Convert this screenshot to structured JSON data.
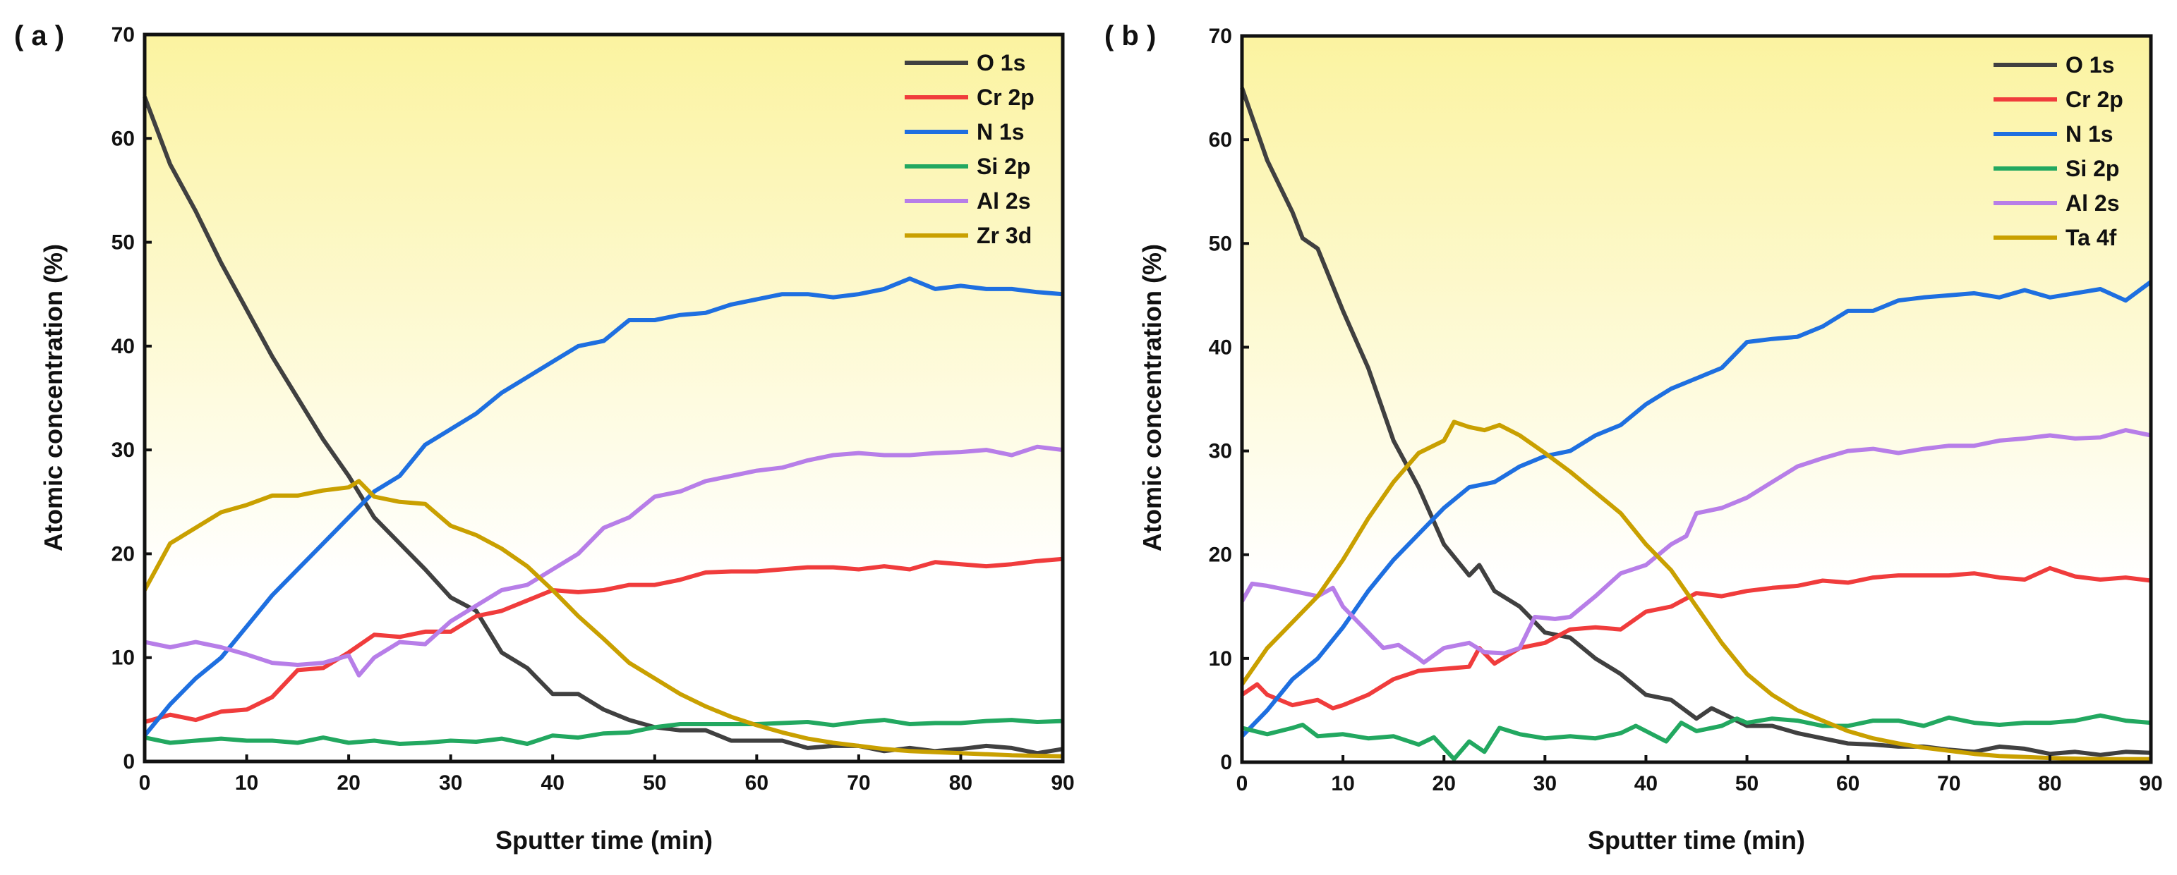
{
  "chart_data": [
    {
      "type": "line",
      "panel_label": "( a )",
      "xlabel": "Sputter time (min)",
      "ylabel": "Atomic concentration (%)",
      "xlim": [
        0,
        90
      ],
      "ylim": [
        0,
        70
      ],
      "xticks": [
        0,
        10,
        20,
        30,
        40,
        50,
        60,
        70,
        80,
        90
      ],
      "yticks": [
        0,
        10,
        20,
        30,
        40,
        50,
        60,
        70
      ],
      "grid": false,
      "legend_position": "top-right",
      "background": "yellow-to-white gradient",
      "series": [
        {
          "name": "O 1s",
          "color": "#404040",
          "x": [
            0,
            2.5,
            5,
            7.5,
            10,
            12.5,
            15,
            17.5,
            20,
            22.5,
            25,
            27.5,
            30,
            32.5,
            35,
            37.5,
            40,
            42.5,
            45,
            47.5,
            50,
            52.5,
            55,
            57.5,
            60,
            62.5,
            65,
            67.5,
            70,
            72.5,
            75,
            77.5,
            80,
            82.5,
            85,
            87.5,
            90
          ],
          "y": [
            64,
            57.5,
            53,
            48,
            43.5,
            39,
            35,
            31,
            27.5,
            23.5,
            21,
            18.5,
            15.8,
            14.5,
            10.5,
            9,
            6.5,
            6.5,
            5,
            4,
            3.3,
            3,
            3,
            2,
            2,
            2,
            1.3,
            1.5,
            1.5,
            1,
            1.3,
            1,
            1.2,
            1.5,
            1.3,
            0.8,
            1.2
          ]
        },
        {
          "name": "Cr 2p",
          "color": "#f03c3c",
          "x": [
            0,
            2.5,
            5,
            7.5,
            10,
            12.5,
            15,
            17.5,
            20,
            22.5,
            25,
            27.5,
            30,
            32.5,
            35,
            37.5,
            40,
            42.5,
            45,
            47.5,
            50,
            52.5,
            55,
            57.5,
            60,
            62.5,
            65,
            67.5,
            70,
            72.5,
            75,
            77.5,
            80,
            82.5,
            85,
            87.5,
            90
          ],
          "y": [
            3.8,
            4.5,
            4,
            4.8,
            5,
            6.2,
            8.8,
            9,
            10.5,
            12.2,
            12,
            12.5,
            12.5,
            14,
            14.5,
            15.5,
            16.5,
            16.3,
            16.5,
            17,
            17,
            17.5,
            18.2,
            18.3,
            18.3,
            18.5,
            18.7,
            18.7,
            18.5,
            18.8,
            18.5,
            19.2,
            19,
            18.8,
            19,
            19.3,
            19.5
          ]
        },
        {
          "name": "N 1s",
          "color": "#1e6fe0",
          "x": [
            0,
            2.5,
            5,
            7.5,
            10,
            12.5,
            15,
            17.5,
            20,
            22.5,
            25,
            27.5,
            30,
            32.5,
            35,
            37.5,
            40,
            42.5,
            45,
            47.5,
            50,
            52.5,
            55,
            57.5,
            60,
            62.5,
            65,
            67.5,
            70,
            72.5,
            75,
            77.5,
            80,
            82.5,
            85,
            87.5,
            90
          ],
          "y": [
            2.5,
            5.5,
            8,
            10,
            13,
            16,
            18.5,
            21,
            23.5,
            26,
            27.5,
            30.5,
            32,
            33.5,
            35.5,
            37,
            38.5,
            40,
            40.5,
            42.5,
            42.5,
            43,
            43.2,
            44,
            44.5,
            45,
            45,
            44.7,
            45,
            45.5,
            46.5,
            45.5,
            45.8,
            45.5,
            45.5,
            45.2,
            45
          ]
        },
        {
          "name": "Si 2p",
          "color": "#22a860",
          "x": [
            0,
            2.5,
            5,
            7.5,
            10,
            12.5,
            15,
            17.5,
            20,
            22.5,
            25,
            27.5,
            30,
            32.5,
            35,
            37.5,
            40,
            42.5,
            45,
            47.5,
            50,
            52.5,
            55,
            57.5,
            60,
            62.5,
            65,
            67.5,
            70,
            72.5,
            75,
            77.5,
            80,
            82.5,
            85,
            87.5,
            90
          ],
          "y": [
            2.3,
            1.8,
            2,
            2.2,
            2,
            2,
            1.8,
            2.3,
            1.8,
            2,
            1.7,
            1.8,
            2,
            1.9,
            2.2,
            1.7,
            2.5,
            2.3,
            2.7,
            2.8,
            3.3,
            3.6,
            3.6,
            3.6,
            3.6,
            3.7,
            3.8,
            3.5,
            3.8,
            4,
            3.6,
            3.7,
            3.7,
            3.9,
            4,
            3.8,
            3.9
          ]
        },
        {
          "name": "Al 2s",
          "color": "#b77ee8",
          "x": [
            0,
            2.5,
            5,
            7.5,
            10,
            12.5,
            15,
            17.5,
            20,
            21,
            22.5,
            25,
            27.5,
            30,
            32.5,
            35,
            37.5,
            40,
            42.5,
            45,
            47.5,
            50,
            52.5,
            55,
            57.5,
            60,
            62.5,
            65,
            67.5,
            70,
            72.5,
            75,
            77.5,
            80,
            82.5,
            85,
            87.5,
            90
          ],
          "y": [
            11.5,
            11,
            11.5,
            11,
            10.3,
            9.5,
            9.3,
            9.5,
            10.2,
            8.3,
            10,
            11.5,
            11.3,
            13.5,
            15,
            16.5,
            17,
            18.5,
            20,
            22.5,
            23.5,
            25.5,
            26,
            27,
            27.5,
            28,
            28.3,
            29,
            29.5,
            29.7,
            29.5,
            29.5,
            29.7,
            29.8,
            30,
            29.5,
            30.3,
            30
          ]
        },
        {
          "name": "Zr 3d",
          "color": "#c9a000",
          "x": [
            0,
            2.5,
            5,
            7.5,
            10,
            12.5,
            15,
            17.5,
            20,
            21,
            22.5,
            25,
            27.5,
            30,
            32.5,
            35,
            37.5,
            40,
            42.5,
            45,
            47.5,
            50,
            52.5,
            55,
            57.5,
            60,
            62.5,
            65,
            67.5,
            70,
            72.5,
            75,
            77.5,
            80,
            85,
            90
          ],
          "y": [
            16.5,
            21,
            22.5,
            24,
            24.7,
            25.6,
            25.6,
            26.1,
            26.4,
            27,
            25.5,
            25,
            24.8,
            22.7,
            21.8,
            20.5,
            18.8,
            16.5,
            14,
            11.8,
            9.5,
            8,
            6.5,
            5.3,
            4.3,
            3.5,
            2.8,
            2.2,
            1.8,
            1.5,
            1.2,
            1,
            0.9,
            0.8,
            0.6,
            0.5
          ]
        }
      ]
    },
    {
      "type": "line",
      "panel_label": "( b )",
      "xlabel": "Sputter time (min)",
      "ylabel": "Atomic concentration (%)",
      "xlim": [
        0,
        90
      ],
      "ylim": [
        0,
        70
      ],
      "xticks": [
        0,
        10,
        20,
        30,
        40,
        50,
        60,
        70,
        80,
        90
      ],
      "yticks": [
        0,
        10,
        20,
        30,
        40,
        50,
        60,
        70
      ],
      "grid": false,
      "legend_position": "top-right",
      "background": "yellow-to-white gradient",
      "series": [
        {
          "name": "O 1s",
          "color": "#404040",
          "x": [
            0,
            2.5,
            5,
            6,
            7.5,
            10,
            12.5,
            15,
            17.5,
            20,
            22.5,
            23.5,
            25,
            27.5,
            30,
            32.5,
            35,
            37.5,
            40,
            42.5,
            45,
            46.5,
            48,
            50,
            52.5,
            55,
            57.5,
            60,
            62.5,
            65,
            67.5,
            70,
            72.5,
            75,
            77.5,
            80,
            82.5,
            85,
            87.5,
            90
          ],
          "y": [
            65,
            58,
            53,
            50.5,
            49.5,
            43.5,
            38,
            31,
            26.5,
            21,
            18,
            19,
            16.5,
            15,
            12.5,
            12,
            10,
            8.5,
            6.5,
            6,
            4.2,
            5.2,
            4.5,
            3.5,
            3.5,
            2.8,
            2.3,
            1.8,
            1.7,
            1.5,
            1.5,
            1.2,
            1,
            1.5,
            1.3,
            0.8,
            1,
            0.7,
            1,
            0.9
          ]
        },
        {
          "name": "Cr 2p",
          "color": "#f03c3c",
          "x": [
            0,
            1.5,
            2.5,
            5,
            7.5,
            9,
            10,
            12.5,
            15,
            17.5,
            20,
            22.5,
            23.5,
            25,
            27.5,
            30,
            32.5,
            35,
            37.5,
            40,
            42.5,
            45,
            47.5,
            50,
            52.5,
            55,
            57.5,
            60,
            62.5,
            65,
            67.5,
            70,
            72.5,
            75,
            77.5,
            80,
            82.5,
            85,
            87.5,
            90
          ],
          "y": [
            6.5,
            7.5,
            6.5,
            5.5,
            6,
            5.2,
            5.5,
            6.5,
            8,
            8.8,
            9,
            9.2,
            11,
            9.5,
            11,
            11.5,
            12.8,
            13,
            12.8,
            14.5,
            15,
            16.3,
            16,
            16.5,
            16.8,
            17,
            17.5,
            17.3,
            17.8,
            18,
            18,
            18,
            18.2,
            17.8,
            17.6,
            18.7,
            17.9,
            17.6,
            17.8,
            17.5
          ]
        },
        {
          "name": "N 1s",
          "color": "#1e6fe0",
          "x": [
            0,
            2.5,
            5,
            7.5,
            10,
            12.5,
            15,
            17.5,
            20,
            22.5,
            25,
            27.5,
            30,
            32.5,
            35,
            37.5,
            40,
            42.5,
            45,
            47.5,
            50,
            52.5,
            55,
            57.5,
            60,
            62.5,
            65,
            67.5,
            70,
            72.5,
            75,
            77.5,
            80,
            82.5,
            85,
            87.5,
            90
          ],
          "y": [
            2.5,
            5,
            8,
            10,
            13,
            16.5,
            19.5,
            22,
            24.5,
            26.5,
            27,
            28.5,
            29.5,
            30,
            31.5,
            32.5,
            34.5,
            36,
            37,
            38,
            40.5,
            40.8,
            41,
            42,
            43.5,
            43.5,
            44.5,
            44.8,
            45,
            45.2,
            44.8,
            45.5,
            44.8,
            45.2,
            45.6,
            44.5,
            46.3
          ]
        },
        {
          "name": "Si 2p",
          "color": "#22a860",
          "x": [
            0,
            2.5,
            5,
            6,
            7.5,
            10,
            12.5,
            15,
            17.5,
            19,
            21,
            22.5,
            24,
            25.5,
            27.5,
            30,
            32.5,
            35,
            37.5,
            39,
            42,
            43.5,
            45,
            47.5,
            49,
            50,
            52.5,
            55,
            57.5,
            60,
            62.5,
            65,
            67.5,
            70,
            72.5,
            75,
            77.5,
            80,
            82.5,
            85,
            87.5,
            90
          ],
          "y": [
            3.3,
            2.7,
            3.3,
            3.6,
            2.5,
            2.7,
            2.3,
            2.5,
            1.7,
            2.4,
            0.3,
            2,
            1,
            3.3,
            2.7,
            2.3,
            2.5,
            2.3,
            2.8,
            3.5,
            2,
            3.8,
            3,
            3.5,
            4.2,
            3.8,
            4.2,
            4,
            3.5,
            3.5,
            4,
            4,
            3.5,
            4.3,
            3.8,
            3.6,
            3.8,
            3.8,
            4,
            4.5,
            4,
            3.8
          ]
        },
        {
          "name": "Al 2s",
          "color": "#b77ee8",
          "x": [
            0,
            1,
            2.5,
            5,
            7.5,
            9,
            10,
            12.5,
            14,
            15.5,
            17.5,
            18,
            20,
            22.5,
            24,
            26,
            27.5,
            29,
            31,
            32.5,
            35,
            37.5,
            40,
            42.5,
            44,
            45,
            47.5,
            50,
            52.5,
            55,
            57.5,
            60,
            62.5,
            65,
            67.5,
            70,
            72.5,
            75,
            77.5,
            80,
            82.5,
            85,
            87.5,
            90
          ],
          "y": [
            15.5,
            17.2,
            17,
            16.5,
            16,
            16.8,
            15,
            12.5,
            11,
            11.3,
            10,
            9.6,
            11,
            11.5,
            10.6,
            10.5,
            11,
            14,
            13.8,
            14,
            16,
            18.2,
            19,
            21,
            21.8,
            24,
            24.5,
            25.5,
            27,
            28.5,
            29.3,
            30,
            30.2,
            29.8,
            30.2,
            30.5,
            30.5,
            31,
            31.2,
            31.5,
            31.2,
            31.3,
            32,
            31.5
          ]
        },
        {
          "name": "Ta 4f",
          "color": "#c9a000",
          "x": [
            0,
            2.5,
            5,
            7.5,
            10,
            12.5,
            15,
            17.5,
            20,
            21,
            22.5,
            24,
            25.5,
            27.5,
            30,
            32.5,
            35,
            37.5,
            40,
            42.5,
            45,
            47.5,
            50,
            52.5,
            55,
            57.5,
            60,
            62.5,
            65,
            67.5,
            70,
            72.5,
            75,
            77.5,
            80,
            85,
            90
          ],
          "y": [
            7.5,
            11,
            13.5,
            16,
            19.5,
            23.5,
            27,
            29.8,
            31,
            32.8,
            32.3,
            32,
            32.5,
            31.5,
            29.8,
            28,
            26,
            24,
            21,
            18.5,
            15,
            11.5,
            8.5,
            6.5,
            5,
            4,
            3,
            2.3,
            1.8,
            1.4,
            1.1,
            0.8,
            0.6,
            0.5,
            0.4,
            0.3,
            0.3
          ]
        }
      ]
    }
  ]
}
